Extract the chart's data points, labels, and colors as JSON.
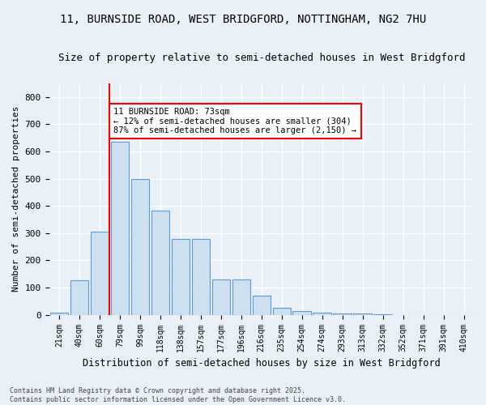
{
  "title": "11, BURNSIDE ROAD, WEST BRIDGFORD, NOTTINGHAM, NG2 7HU",
  "subtitle": "Size of property relative to semi-detached houses in West Bridgford",
  "xlabel": "Distribution of semi-detached houses by size in West Bridgford",
  "ylabel": "Number of semi-detached properties",
  "categories": [
    "21sqm",
    "40sqm",
    "60sqm",
    "79sqm",
    "99sqm",
    "118sqm",
    "138sqm",
    "157sqm",
    "177sqm",
    "196sqm",
    "216sqm",
    "235sqm",
    "254sqm",
    "274sqm",
    "293sqm",
    "313sqm",
    "332sqm",
    "352sqm",
    "371sqm",
    "391sqm",
    "410sqm"
  ],
  "values": [
    8,
    128,
    304,
    635,
    500,
    383,
    278,
    278,
    130,
    130,
    70,
    25,
    13,
    8,
    5,
    5,
    2,
    0,
    0,
    0,
    0
  ],
  "bar_color": "#cce0f0",
  "bar_edge_color": "#5b9bd5",
  "vline_color": "red",
  "annotation_text": "11 BURNSIDE ROAD: 73sqm\n← 12% of semi-detached houses are smaller (304)\n87% of semi-detached houses are larger (2,150) →",
  "annotation_box_color": "white",
  "annotation_box_edge_color": "red",
  "ylim": [
    0,
    850
  ],
  "yticks": [
    0,
    100,
    200,
    300,
    400,
    500,
    600,
    700,
    800
  ],
  "footer": "Contains HM Land Registry data © Crown copyright and database right 2025.\nContains public sector information licensed under the Open Government Licence v3.0.",
  "bg_color": "#eaf0f8",
  "plot_bg_color": "#eaf0f8",
  "grid_color": "white",
  "title_fontsize": 10,
  "subtitle_fontsize": 9
}
